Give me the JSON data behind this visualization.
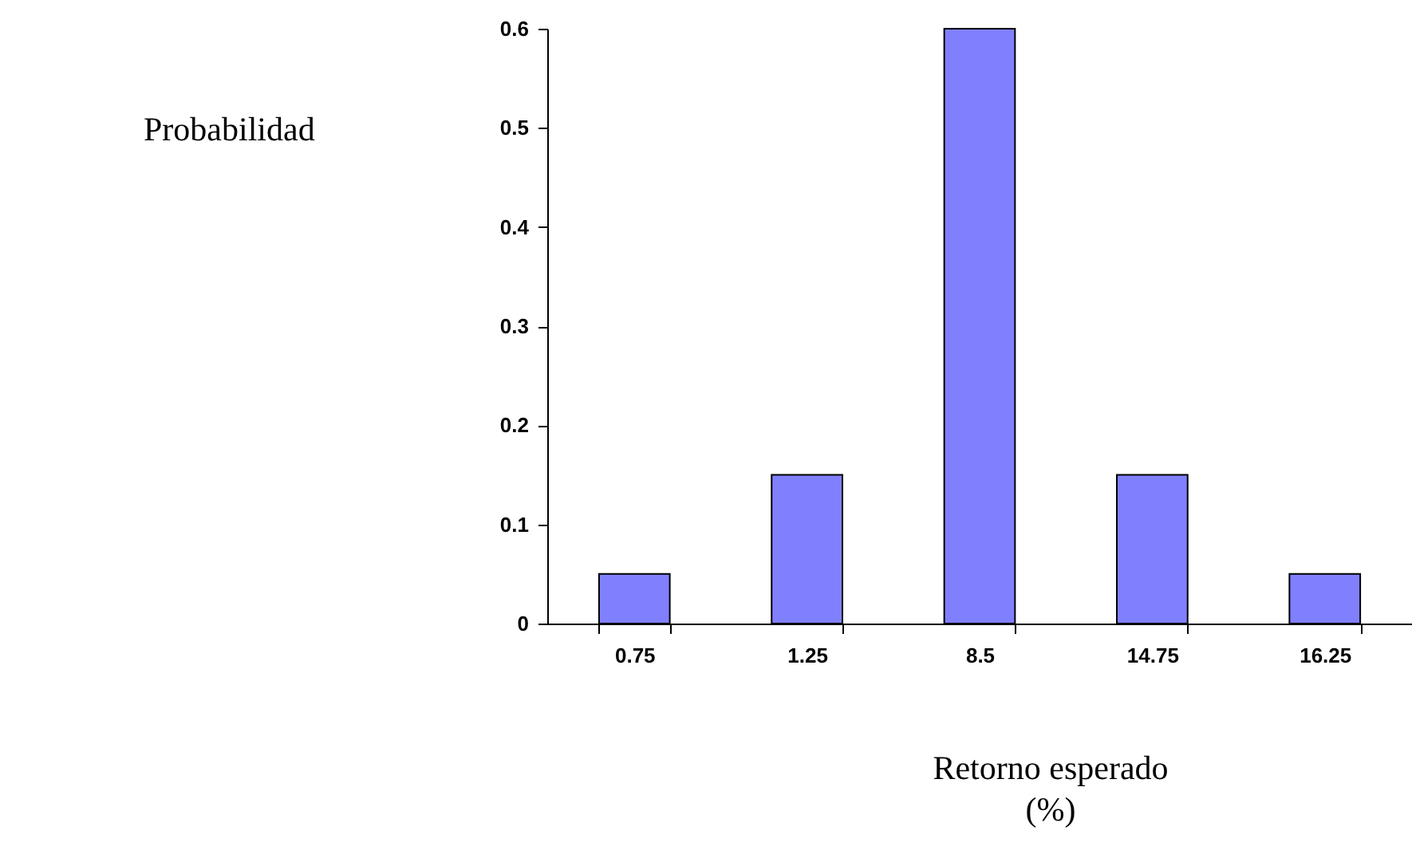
{
  "chart_data": {
    "type": "bar",
    "xlabel": "Retorno esperado (%)",
    "annotations": [
      "Probabilidad"
    ],
    "categories": [
      "0.75",
      "1.25",
      "8.5",
      "14.75",
      "16.25"
    ],
    "values": [
      0.05,
      0.15,
      0.6,
      0.15,
      0.05
    ],
    "color": "#8080ff",
    "ylim": [
      0,
      0.6
    ],
    "yticks": [
      0,
      0.1,
      0.2,
      0.3,
      0.4,
      0.5,
      0.6
    ],
    "grid": false
  }
}
